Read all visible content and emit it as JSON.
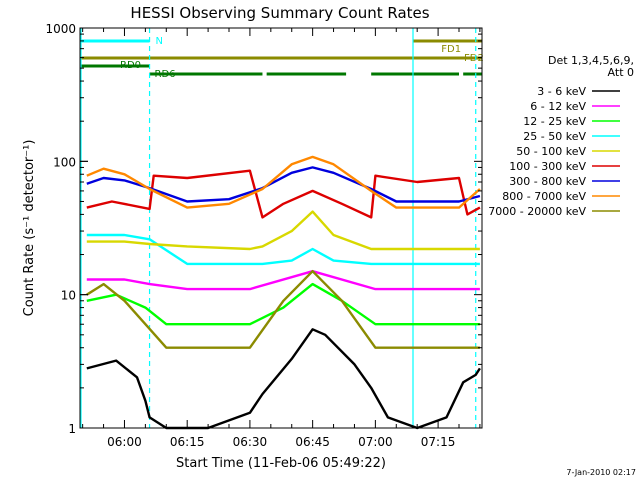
{
  "chart_data": {
    "type": "line",
    "title": "HESSI Observing Summary Count Rates",
    "xlabel": "Start Time (11-Feb-06 05:49:22)",
    "ylabel": "Count Rate (s⁻¹ detector⁻¹)",
    "y_scale": "log",
    "ylim": [
      1,
      1000
    ],
    "xlim": [
      "05:49:22",
      "07:25:30"
    ],
    "y_ticks": [
      "1",
      "10",
      "100",
      "1000"
    ],
    "x_ticks": [
      "06:00",
      "06:15",
      "06:30",
      "06:45",
      "07:00",
      "07:15"
    ],
    "grid": false,
    "timestamp": "7-Jan-2010 02:17",
    "legend": {
      "placement": "right",
      "header": [
        "Det 1,3,4,5,6,9,",
        "Att 0"
      ],
      "entries": [
        {
          "label": "3 - 6 keV",
          "color": "#000000"
        },
        {
          "label": "6 - 12 keV",
          "color": "#ff00ff"
        },
        {
          "label": "12 - 25 keV",
          "color": "#00ff00"
        },
        {
          "label": "25 - 50 keV",
          "color": "#00ffff"
        },
        {
          "label": "50 - 100 keV",
          "color": "#d8d800"
        },
        {
          "label": "100 - 300 keV",
          "color": "#dd0000"
        },
        {
          "label": "300 - 800 keV",
          "color": "#0000dd"
        },
        {
          "label": "800 - 7000 keV",
          "color": "#ff8800"
        },
        {
          "label": "7000 - 20000 keV",
          "color": "#8b8b00"
        }
      ]
    },
    "flags": [
      {
        "label": "N",
        "color": "#00ffff",
        "intervals": [
          [
            "05:49:22",
            "06:06:00"
          ],
          [
            "07:09:00",
            "07:25:30"
          ]
        ]
      },
      {
        "label": "FD1",
        "color": "#8b8b00",
        "intervals": [
          [
            "07:09:00",
            "07:25:30"
          ]
        ]
      },
      {
        "label": "FD2",
        "color": "#8b8b00",
        "intervals": [
          [
            "05:49:22",
            "07:25:30"
          ]
        ]
      },
      {
        "label": "RD0",
        "color": "#007700",
        "intervals": [
          [
            "05:49:22",
            "06:06:00"
          ]
        ]
      },
      {
        "label": "RD6",
        "color": "#007700",
        "intervals": [
          [
            "06:06:00",
            "06:33:00"
          ],
          [
            "06:34:00",
            "06:53:00"
          ],
          [
            "06:59:00",
            "07:20:00"
          ],
          [
            "07:21:00",
            "07:25:30"
          ]
        ]
      }
    ],
    "markers": {
      "solid": [
        "05:49:22",
        "07:09:00"
      ],
      "dashed": [
        "06:06:00",
        "07:24:00"
      ]
    },
    "series": [
      {
        "name": "3 - 6 keV",
        "x": [
          "05:51",
          "05:58",
          "06:03",
          "06:05",
          "06:06",
          "06:10",
          "06:20",
          "06:30",
          "06:33",
          "06:40",
          "06:45",
          "06:48",
          "06:55",
          "06:59",
          "07:03",
          "07:10",
          "07:17",
          "07:21",
          "07:24",
          "07:25"
        ],
        "y": [
          2.8,
          3.2,
          2.4,
          1.6,
          1.2,
          1.0,
          1.0,
          1.3,
          1.8,
          3.3,
          5.5,
          5.0,
          3.0,
          2.0,
          1.2,
          1.0,
          1.2,
          2.2,
          2.5,
          2.8
        ]
      },
      {
        "name": "6 - 12 keV",
        "x": [
          "05:51",
          "06:00",
          "06:06",
          "06:15",
          "06:30",
          "06:45",
          "07:00",
          "07:15",
          "07:25"
        ],
        "y": [
          13,
          13,
          12,
          11,
          11,
          15,
          11,
          11,
          11
        ]
      },
      {
        "name": "12 - 25 keV",
        "x": [
          "05:51",
          "05:58",
          "06:05",
          "06:10",
          "06:20",
          "06:30",
          "06:38",
          "06:45",
          "06:52",
          "07:00",
          "07:10",
          "07:20",
          "07:25"
        ],
        "y": [
          9,
          10,
          8,
          6,
          6,
          6,
          8,
          12,
          9,
          6,
          6,
          6,
          6
        ]
      },
      {
        "name": "25 - 50 keV",
        "x": [
          "05:51",
          "06:00",
          "06:06",
          "06:15",
          "06:30",
          "06:33",
          "06:40",
          "06:45",
          "06:50",
          "06:59",
          "07:05",
          "07:15",
          "07:25"
        ],
        "y": [
          28,
          28,
          26,
          17,
          17,
          17,
          18,
          22,
          18,
          17,
          17,
          17,
          17
        ]
      },
      {
        "name": "50 - 100 keV",
        "x": [
          "05:51",
          "06:00",
          "06:06",
          "06:15",
          "06:30",
          "06:33",
          "06:40",
          "06:45",
          "06:50",
          "06:59",
          "07:05",
          "07:15",
          "07:25"
        ],
        "y": [
          25,
          25,
          24,
          23,
          22,
          23,
          30,
          42,
          28,
          22,
          22,
          22,
          22
        ]
      },
      {
        "name": "100 - 300 keV",
        "x": [
          "05:51",
          "05:57",
          "06:06",
          "06:07",
          "06:15",
          "06:30",
          "06:33",
          "06:38",
          "06:45",
          "06:52",
          "06:59",
          "07:00",
          "07:10",
          "07:20",
          "07:22",
          "07:25"
        ],
        "y": [
          45,
          50,
          44,
          78,
          75,
          85,
          38,
          48,
          60,
          48,
          38,
          78,
          70,
          75,
          40,
          45
        ]
      },
      {
        "name": "300 - 800 keV",
        "x": [
          "05:51",
          "05:55",
          "06:00",
          "06:06",
          "06:15",
          "06:25",
          "06:33",
          "06:40",
          "06:45",
          "06:50",
          "06:59",
          "07:05",
          "07:15",
          "07:20",
          "07:25"
        ],
        "y": [
          68,
          75,
          72,
          63,
          50,
          52,
          63,
          82,
          90,
          82,
          62,
          50,
          50,
          50,
          55
        ]
      },
      {
        "name": "800 - 7000 keV",
        "x": [
          "05:51",
          "05:55",
          "06:00",
          "06:06",
          "06:15",
          "06:25",
          "06:33",
          "06:40",
          "06:45",
          "06:50",
          "06:59",
          "07:05",
          "07:15",
          "07:20",
          "07:25"
        ],
        "y": [
          78,
          88,
          80,
          62,
          45,
          48,
          62,
          95,
          108,
          95,
          60,
          45,
          45,
          45,
          62
        ]
      },
      {
        "name": "7000 - 20000 keV",
        "x": [
          "05:51",
          "05:55",
          "06:00",
          "06:05",
          "06:10",
          "06:20",
          "06:30",
          "06:38",
          "06:45",
          "06:52",
          "07:00",
          "07:10",
          "07:20",
          "07:25"
        ],
        "y": [
          10,
          12,
          9,
          6,
          4,
          4,
          4,
          9,
          15,
          9,
          4,
          4,
          4,
          4
        ]
      }
    ]
  }
}
